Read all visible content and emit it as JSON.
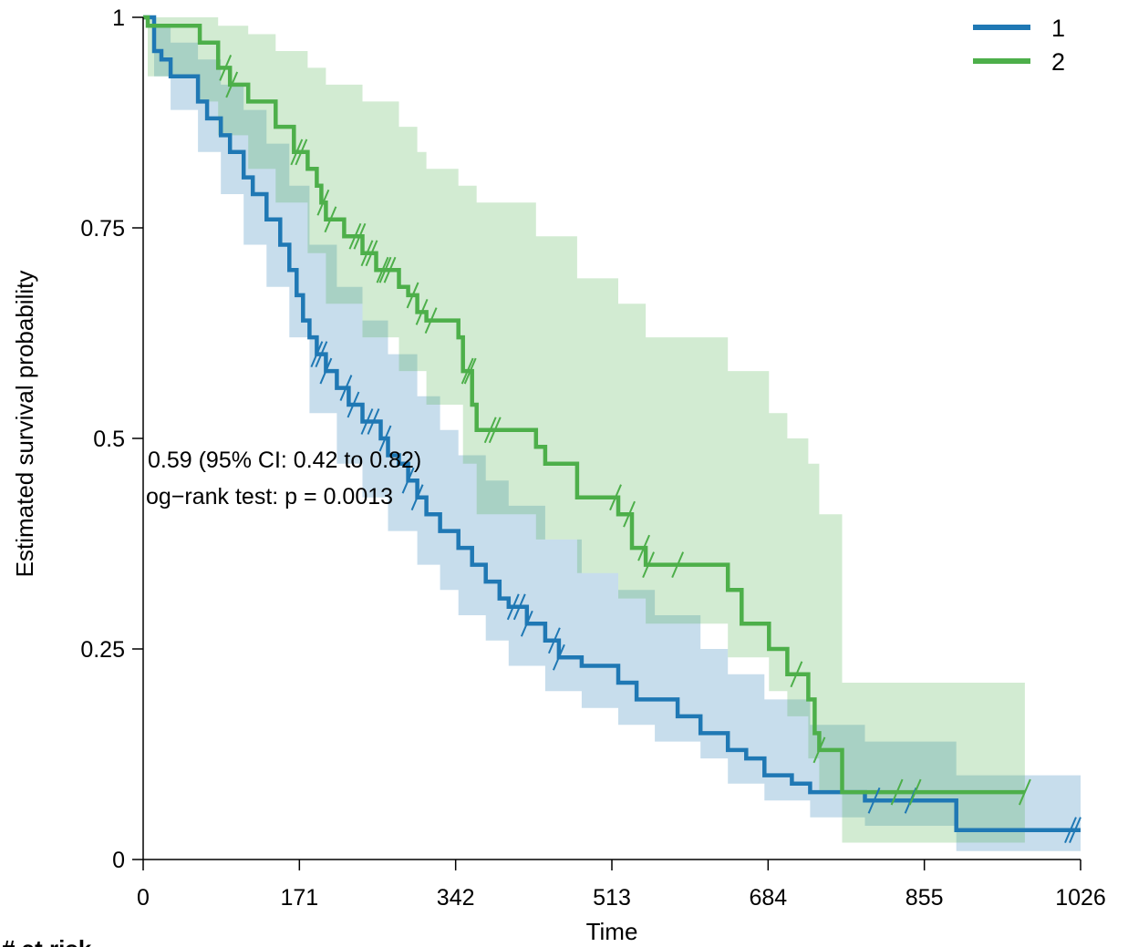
{
  "chart_data": {
    "type": "line",
    "subtype": "kaplan-meier survival curve with 95% confidence bands",
    "xlabel": "Time",
    "ylabel": "Estimated survival probability",
    "xlim": [
      0,
      1026
    ],
    "ylim": [
      0,
      1
    ],
    "x_ticks": [
      0,
      171,
      342,
      513,
      684,
      855,
      1026
    ],
    "x_tick_labels": [
      "0",
      "171",
      "342",
      "513",
      "684",
      "855",
      "1026"
    ],
    "y_ticks": [
      0,
      0.25,
      0.5,
      0.75,
      1
    ],
    "y_tick_labels": [
      "0",
      "0.25",
      "0.5",
      "0.75",
      "1"
    ],
    "grid": false,
    "legend_position": "top-right",
    "annotations": [
      "0.59 (95% CI: 0.42 to 0.82)",
      "og−rank test: p =  0.0013"
    ],
    "risk_table_title": "# at risk",
    "series": [
      {
        "name": "1",
        "color": "#1f78b4",
        "steps": [
          [
            0,
            1
          ],
          [
            12,
            0.96
          ],
          [
            20,
            0.95
          ],
          [
            30,
            0.93
          ],
          [
            60,
            0.9
          ],
          [
            70,
            0.88
          ],
          [
            85,
            0.86
          ],
          [
            95,
            0.84
          ],
          [
            110,
            0.81
          ],
          [
            120,
            0.79
          ],
          [
            135,
            0.76
          ],
          [
            150,
            0.73
          ],
          [
            160,
            0.7
          ],
          [
            168,
            0.67
          ],
          [
            175,
            0.64
          ],
          [
            182,
            0.62
          ],
          [
            190,
            0.6
          ],
          [
            200,
            0.58
          ],
          [
            212,
            0.56
          ],
          [
            225,
            0.54
          ],
          [
            240,
            0.52
          ],
          [
            260,
            0.5
          ],
          [
            268,
            0.48
          ],
          [
            280,
            0.47
          ],
          [
            290,
            0.45
          ],
          [
            300,
            0.43
          ],
          [
            310,
            0.41
          ],
          [
            325,
            0.39
          ],
          [
            345,
            0.37
          ],
          [
            360,
            0.35
          ],
          [
            375,
            0.33
          ],
          [
            390,
            0.31
          ],
          [
            400,
            0.3
          ],
          [
            420,
            0.28
          ],
          [
            440,
            0.26
          ],
          [
            455,
            0.24
          ],
          [
            480,
            0.23
          ],
          [
            520,
            0.21
          ],
          [
            540,
            0.19
          ],
          [
            560,
            0.19
          ],
          [
            585,
            0.17
          ],
          [
            610,
            0.15
          ],
          [
            640,
            0.13
          ],
          [
            660,
            0.12
          ],
          [
            680,
            0.1
          ],
          [
            710,
            0.09
          ],
          [
            730,
            0.08
          ],
          [
            790,
            0.07
          ],
          [
            890,
            0.035
          ],
          [
            1026,
            0.035
          ]
        ],
        "ci_upper": [
          [
            0,
            1
          ],
          [
            12,
            0.99
          ],
          [
            30,
            0.97
          ],
          [
            60,
            0.95
          ],
          [
            85,
            0.92
          ],
          [
            110,
            0.89
          ],
          [
            135,
            0.85
          ],
          [
            160,
            0.8
          ],
          [
            182,
            0.73
          ],
          [
            212,
            0.68
          ],
          [
            240,
            0.64
          ],
          [
            268,
            0.6
          ],
          [
            300,
            0.55
          ],
          [
            325,
            0.51
          ],
          [
            345,
            0.48
          ],
          [
            375,
            0.45
          ],
          [
            400,
            0.42
          ],
          [
            440,
            0.38
          ],
          [
            480,
            0.34
          ],
          [
            520,
            0.32
          ],
          [
            560,
            0.29
          ],
          [
            610,
            0.25
          ],
          [
            640,
            0.22
          ],
          [
            680,
            0.19
          ],
          [
            730,
            0.16
          ],
          [
            790,
            0.14
          ],
          [
            890,
            0.1
          ],
          [
            1026,
            0.1
          ]
        ],
        "ci_lower": [
          [
            0,
            1
          ],
          [
            12,
            0.93
          ],
          [
            30,
            0.89
          ],
          [
            60,
            0.84
          ],
          [
            85,
            0.79
          ],
          [
            110,
            0.73
          ],
          [
            135,
            0.68
          ],
          [
            160,
            0.62
          ],
          [
            182,
            0.53
          ],
          [
            212,
            0.47
          ],
          [
            240,
            0.43
          ],
          [
            268,
            0.39
          ],
          [
            300,
            0.35
          ],
          [
            325,
            0.32
          ],
          [
            345,
            0.29
          ],
          [
            375,
            0.26
          ],
          [
            400,
            0.23
          ],
          [
            440,
            0.2
          ],
          [
            480,
            0.18
          ],
          [
            520,
            0.16
          ],
          [
            560,
            0.14
          ],
          [
            610,
            0.12
          ],
          [
            640,
            0.09
          ],
          [
            680,
            0.07
          ],
          [
            730,
            0.05
          ],
          [
            790,
            0.04
          ],
          [
            890,
            0.01
          ],
          [
            1026,
            0.01
          ]
        ],
        "censor_times": [
          190,
          195,
          200,
          222,
          230,
          245,
          252,
          265,
          290,
          300,
          405,
          412,
          420,
          450,
          455,
          800,
          840,
          1015,
          1020
        ]
      },
      {
        "name": "2",
        "color": "#4daf4a",
        "steps": [
          [
            0,
            1
          ],
          [
            5,
            0.99
          ],
          [
            62,
            0.97
          ],
          [
            82,
            0.94
          ],
          [
            95,
            0.92
          ],
          [
            115,
            0.9
          ],
          [
            145,
            0.87
          ],
          [
            165,
            0.84
          ],
          [
            180,
            0.82
          ],
          [
            190,
            0.8
          ],
          [
            195,
            0.78
          ],
          [
            200,
            0.76
          ],
          [
            220,
            0.74
          ],
          [
            240,
            0.72
          ],
          [
            255,
            0.7
          ],
          [
            280,
            0.68
          ],
          [
            290,
            0.67
          ],
          [
            300,
            0.65
          ],
          [
            310,
            0.64
          ],
          [
            345,
            0.62
          ],
          [
            350,
            0.58
          ],
          [
            360,
            0.54
          ],
          [
            365,
            0.51
          ],
          [
            385,
            0.51
          ],
          [
            430,
            0.49
          ],
          [
            440,
            0.47
          ],
          [
            475,
            0.43
          ],
          [
            520,
            0.41
          ],
          [
            535,
            0.37
          ],
          [
            550,
            0.35
          ],
          [
            640,
            0.32
          ],
          [
            655,
            0.28
          ],
          [
            685,
            0.25
          ],
          [
            705,
            0.22
          ],
          [
            728,
            0.19
          ],
          [
            735,
            0.15
          ],
          [
            740,
            0.13
          ],
          [
            765,
            0.08
          ],
          [
            965,
            0.08
          ]
        ],
        "ci_upper": [
          [
            0,
            1
          ],
          [
            62,
            1
          ],
          [
            82,
            0.99
          ],
          [
            115,
            0.98
          ],
          [
            145,
            0.96
          ],
          [
            180,
            0.94
          ],
          [
            200,
            0.92
          ],
          [
            240,
            0.9
          ],
          [
            280,
            0.87
          ],
          [
            300,
            0.84
          ],
          [
            310,
            0.82
          ],
          [
            345,
            0.8
          ],
          [
            365,
            0.78
          ],
          [
            430,
            0.74
          ],
          [
            475,
            0.69
          ],
          [
            520,
            0.66
          ],
          [
            550,
            0.62
          ],
          [
            640,
            0.58
          ],
          [
            685,
            0.53
          ],
          [
            705,
            0.5
          ],
          [
            728,
            0.47
          ],
          [
            740,
            0.41
          ],
          [
            765,
            0.21
          ],
          [
            965,
            0.21
          ]
        ],
        "ci_lower": [
          [
            0,
            1
          ],
          [
            5,
            0.93
          ],
          [
            62,
            0.9
          ],
          [
            82,
            0.86
          ],
          [
            115,
            0.82
          ],
          [
            145,
            0.78
          ],
          [
            180,
            0.72
          ],
          [
            200,
            0.66
          ],
          [
            240,
            0.62
          ],
          [
            280,
            0.58
          ],
          [
            310,
            0.54
          ],
          [
            350,
            0.47
          ],
          [
            365,
            0.41
          ],
          [
            430,
            0.38
          ],
          [
            475,
            0.34
          ],
          [
            520,
            0.31
          ],
          [
            550,
            0.28
          ],
          [
            640,
            0.24
          ],
          [
            685,
            0.2
          ],
          [
            705,
            0.17
          ],
          [
            728,
            0.12
          ],
          [
            740,
            0.08
          ],
          [
            765,
            0.02
          ],
          [
            965,
            0.02
          ]
        ],
        "censor_times": [
          90,
          97,
          168,
          173,
          197,
          205,
          232,
          237,
          245,
          250,
          262,
          265,
          270,
          295,
          305,
          315,
          355,
          358,
          380,
          385,
          517,
          532,
          548,
          553,
          585,
          715,
          740,
          825,
          845,
          965
        ]
      }
    ]
  }
}
